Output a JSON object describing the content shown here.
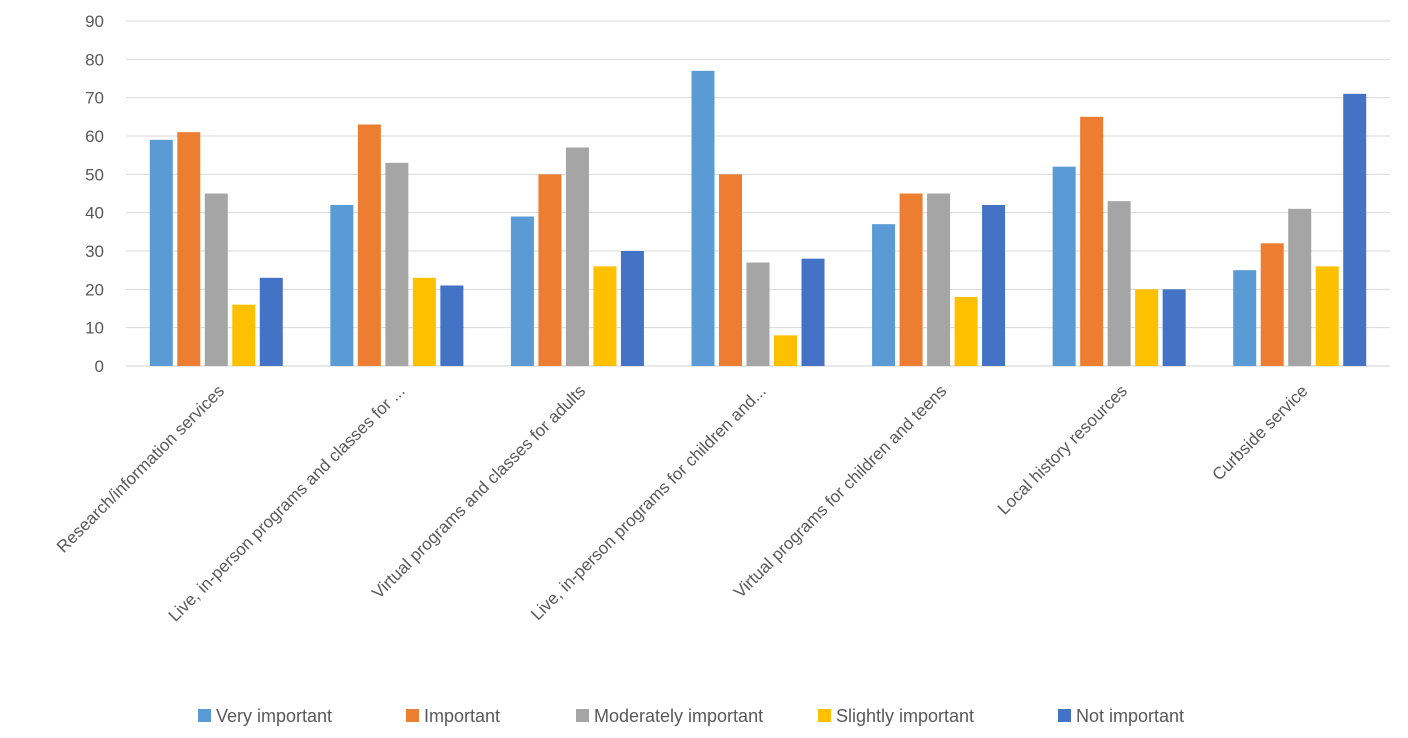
{
  "chart_data": {
    "type": "bar",
    "title": "",
    "xlabel": "",
    "ylabel": "",
    "ylim": [
      0,
      90
    ],
    "yticks": [
      0,
      10,
      20,
      30,
      40,
      50,
      60,
      70,
      80,
      90
    ],
    "grid": true,
    "legend_position": "bottom",
    "categories": [
      "Research/information services",
      "Live, in-person programs and classes for ...",
      "Virtual programs and classes for adults",
      "Live, in-person programs for children and...",
      "Virtual programs for children and teens",
      "Local history resources",
      "Curbside service"
    ],
    "series": [
      {
        "name": "Very important",
        "color": "#5b9bd5",
        "values": [
          59,
          42,
          39,
          77,
          37,
          52,
          25
        ]
      },
      {
        "name": "Important",
        "color": "#ed7d31",
        "values": [
          61,
          63,
          50,
          50,
          45,
          65,
          32
        ]
      },
      {
        "name": "Moderately important",
        "color": "#a5a5a5",
        "values": [
          45,
          53,
          57,
          27,
          45,
          43,
          41
        ]
      },
      {
        "name": "Slightly important",
        "color": "#ffc000",
        "values": [
          16,
          23,
          26,
          8,
          18,
          20,
          26
        ]
      },
      {
        "name": "Not important",
        "color": "#4472c4",
        "values": [
          23,
          21,
          30,
          28,
          42,
          20,
          71
        ]
      }
    ]
  }
}
